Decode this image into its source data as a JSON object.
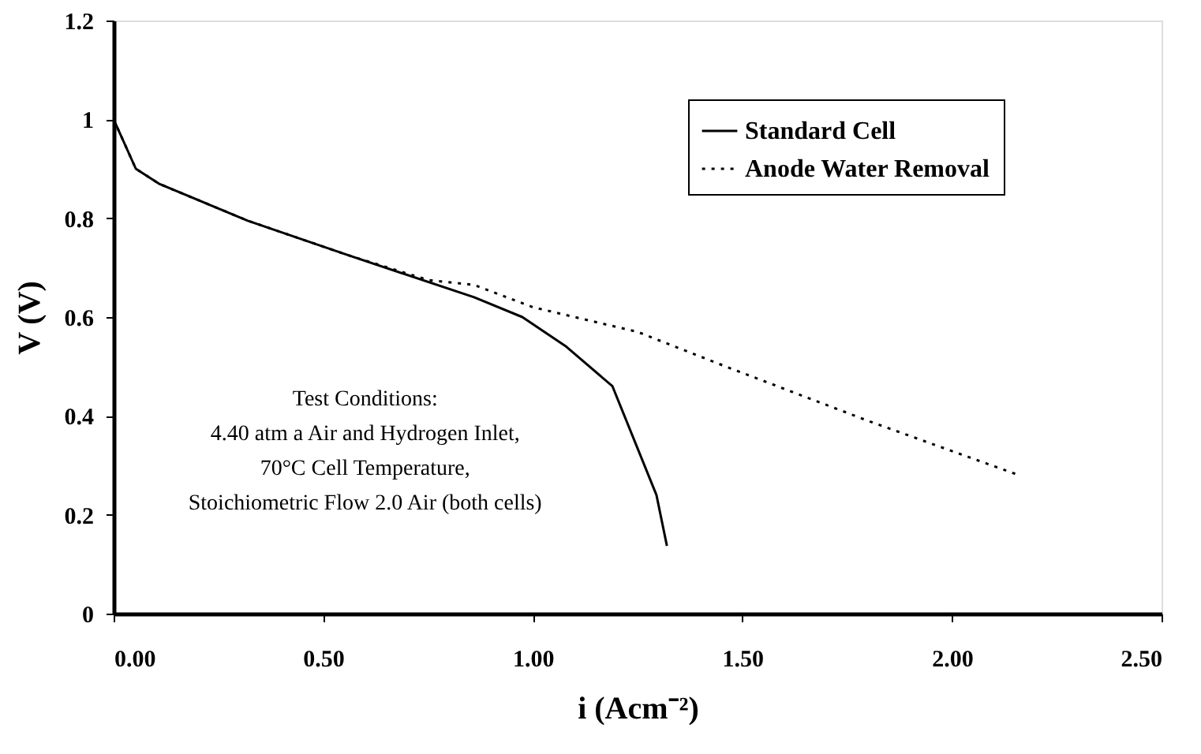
{
  "chart_data": {
    "type": "line",
    "xlabel": "i (Acm⁻²)",
    "ylabel": "V (V)",
    "xlim": [
      0,
      2.5
    ],
    "ylim": [
      0,
      1.2
    ],
    "xticks": [
      {
        "value": 0,
        "label": "0.00"
      },
      {
        "value": 0.5,
        "label": "0.50"
      },
      {
        "value": 1,
        "label": "1.00"
      },
      {
        "value": 1.5,
        "label": "1.50"
      },
      {
        "value": 2,
        "label": "2.00"
      },
      {
        "value": 2.5,
        "label": "2.50"
      }
    ],
    "yticks": [
      0,
      0.2,
      0.4,
      0.6,
      0.8,
      1,
      1.2
    ],
    "grid": false,
    "legend": "top right",
    "marker": "none",
    "annotations": [
      "Test  Conditions:\n4.40 atm a  Air and Hydrogen Inlet,\n70°C Cell Temperature,\nStoichiometric Flow 2.0 Air (both cells)"
    ],
    "series": [
      {
        "name": "Standard Cell",
        "color": "#000000",
        "line_style": "solid",
        "x": [
          0,
          0.053,
          0.11,
          0.32,
          0.56,
          0.86,
          0.975,
          1.08,
          1.19,
          1.295,
          1.32
        ],
        "values": [
          1.0,
          0.9,
          0.869,
          0.795,
          0.725,
          0.64,
          0.6,
          0.54,
          0.46,
          0.24,
          0.137
        ]
      },
      {
        "name": "Anode Water Removal",
        "color": "#000000",
        "line_style": "dotted",
        "x": [
          0,
          0.053,
          0.11,
          0.32,
          0.56,
          0.75,
          0.86,
          1.0,
          1.1,
          1.25,
          1.46,
          1.8,
          2.16
        ],
        "values": [
          1.0,
          0.9,
          0.869,
          0.795,
          0.725,
          0.675,
          0.665,
          0.62,
          0.6,
          0.57,
          0.5,
          0.39,
          0.28
        ]
      }
    ]
  }
}
